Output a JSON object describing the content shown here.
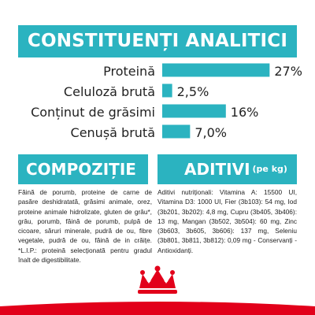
{
  "header": {
    "title": "CONSTITUENȚI ANALITICI"
  },
  "chart_data": {
    "type": "bar",
    "orientation": "horizontal",
    "categories": [
      "Proteină",
      "Celuloză brută",
      "Conținut de grăsimi",
      "Cenușă brută"
    ],
    "values": [
      27,
      2.5,
      16,
      7.0
    ],
    "value_labels": [
      "27%",
      "2,5%",
      "16%",
      "7,0%"
    ],
    "title": "CONSTITUENȚI ANALITICI",
    "xlabel": "",
    "ylabel": "",
    "bar_color": "#2bb3c0",
    "grid": false,
    "legend": "none"
  },
  "composition": {
    "title": "COMPOZIȚIE",
    "text": "Făină de porumb, proteine de carne de pasăre deshidratată, grăsimi animale, orez, proteine animale hidrolizate, gluten de grâu*, grâu, porumb, făină de porumb, pulpă de cicoare, săruri minerale, pudră de ou, fibre vegetale, pudră de ou, făină de in crăițe. *L.I.P.: proteină selecționată pentru gradul înalt de digestibilitate."
  },
  "additives": {
    "title": "ADITIVI",
    "unit": "(pe kg)",
    "text": "Aditivi nutriționali: Vitamina A: 15500 UI, Vitamina D3: 1000 UI, Fier (3b103): 54 mg, Iod (3b201, 3b202): 4,8 mg, Cupru (3b405, 3b406): 13 mg, Mangan (3b502, 3b504): 60 mg, Zinc (3b603, 3b605, 3b606): 137 mg, Seleniu (3b801, 3b811, 3b812): 0,09 mg - Conservanți - Antioxidanți."
  },
  "brand": {
    "logo": "royal-canin-crown-logo"
  },
  "colors": {
    "accent": "#2bb3c0",
    "brand_red": "#e2001a"
  }
}
